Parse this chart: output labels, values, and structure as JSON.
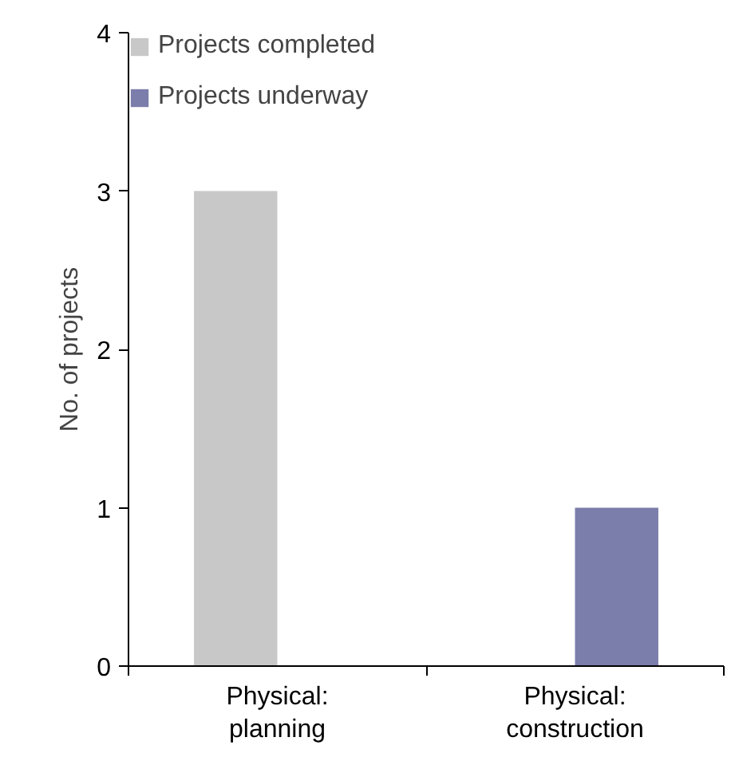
{
  "chart_data": {
    "type": "bar",
    "ylabel": "No. of projects",
    "categories": [
      "Physical:\nplanning",
      "Physical:\nconstruction"
    ],
    "series": [
      {
        "name": "Projects completed",
        "color": "#c8c8c8",
        "values": [
          3,
          0
        ]
      },
      {
        "name": "Projects underway",
        "color": "#7b7dab",
        "values": [
          0,
          1
        ]
      }
    ],
    "ylim": [
      0,
      4
    ],
    "yticks": [
      0,
      1,
      2,
      3,
      4
    ],
    "grid": false,
    "legend": "top left"
  }
}
